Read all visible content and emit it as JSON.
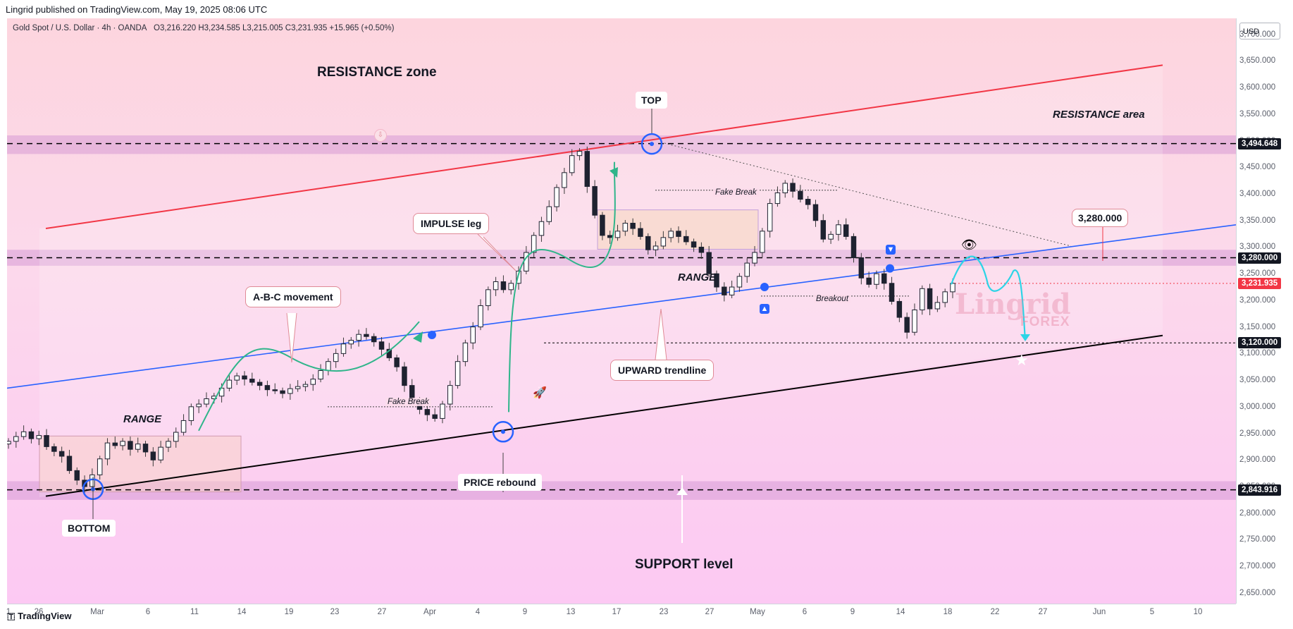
{
  "header": {
    "publisher": "Lingrid published on TradingView.com, May 19, 2025 08:06 UTC",
    "symbol": "Gold Spot / U.S. Dollar · 4h · OANDA",
    "ohlc": "O3,216.220 H3,234.585 L3,215.005 C3,231.935 +15.965 (+0.50%)",
    "currency": "USD",
    "logo": "TradingView"
  },
  "colors": {
    "bull": "#089981",
    "bear": "#f23645",
    "zone": "#d9a0d9",
    "resistance_line": "#f23645",
    "trend_line": "#2962ff",
    "support_line": "#000000",
    "price_tag": "#f23645"
  },
  "annotations": {
    "resistance_zone": "RESISTANCE zone",
    "resistance_area": "RESISTANCE area",
    "top": "TOP",
    "impulse_leg": "IMPULSE leg",
    "abc_movement": "A-B-C movement",
    "range_left": "RANGE",
    "range_mid": "RANGE",
    "fake_break_left": "Fake Break",
    "fake_break_top": "Fake Break",
    "breakout": "Breakout",
    "upward_trendline": "UPWARD trendline",
    "price_rebound": "PRICE rebound",
    "bottom": "BOTTOM",
    "support_level": "SUPPORT level",
    "target": "3,280.000",
    "watermark": "Lingrid",
    "watermark_sub": "FOREX"
  },
  "chart_data": {
    "type": "candlestick",
    "symbol": "XAUUSD",
    "timeframe": "4h",
    "ylim": [
      2630,
      3730
    ],
    "y_ticks": [
      3700,
      3650,
      3600,
      3550,
      3500,
      3450,
      3400,
      3350,
      3300,
      3250,
      3200,
      3150,
      3100,
      3050,
      3000,
      2950,
      2900,
      2850,
      2800,
      2750,
      2700,
      2650
    ],
    "y_tick_labels": [
      "3,700.000",
      "3,650.000",
      "3,600.000",
      "3,550.000",
      "3,500.000",
      "3,450.000",
      "3,400.000",
      "3,350.000",
      "3,300.000",
      "3,250.000",
      "3,200.000",
      "3,150.000",
      "3,100.000",
      "3,050.000",
      "3,000.000",
      "2,950.000",
      "2,900.000",
      "2,850.000",
      "2,800.000",
      "2,750.000",
      "2,700.000",
      "2,650.000"
    ],
    "x_labels": [
      "1",
      "26",
      "Mar",
      "6",
      "11",
      "14",
      "19",
      "23",
      "27",
      "Apr",
      "4",
      "9",
      "13",
      "17",
      "23",
      "27",
      "May",
      "6",
      "9",
      "14",
      "18",
      "22",
      "27",
      "Jun",
      "5",
      "10"
    ],
    "price_levels": [
      {
        "label": "3,494.648",
        "value": 3494.648,
        "color": "#131722"
      },
      {
        "label": "3,280.000",
        "value": 3280.0,
        "color": "#131722"
      },
      {
        "label": "3,231.935",
        "value": 3231.935,
        "color": "#f23645"
      },
      {
        "label": "3,120.000",
        "value": 3120.0,
        "color": "#131722"
      },
      {
        "label": "2,843.916",
        "value": 2843.916,
        "color": "#131722"
      }
    ],
    "zones": [
      {
        "from": 3475,
        "to": 3510
      },
      {
        "from": 3265,
        "to": 3295
      },
      {
        "from": 2825,
        "to": 2860
      }
    ],
    "series": [
      {
        "values": [
          2935,
          2944,
          2953,
          2940,
          2946,
          2925,
          2916,
          2907,
          2880,
          2862,
          2850,
          2872,
          2902,
          2932,
          2927,
          2935,
          2920,
          2930,
          2915,
          2900,
          2924,
          2935,
          2952,
          2974,
          3000,
          3005,
          3015,
          3020,
          3035,
          3050,
          3058,
          3052,
          3046,
          3040,
          3032,
          3030,
          3025,
          3034,
          3038,
          3042,
          3052,
          3068,
          3085,
          3100,
          3118,
          3125,
          3136,
          3132,
          3122,
          3108,
          3092,
          3075,
          3040,
          3012,
          2995,
          2985,
          2978,
          3005,
          3040,
          3085,
          3120,
          3150,
          3190,
          3220,
          3235,
          3220,
          3232,
          3255,
          3290,
          3322,
          3348,
          3376,
          3412,
          3440,
          3472,
          3480,
          3414,
          3360,
          3322,
          3318,
          3330,
          3345,
          3335,
          3320,
          3295,
          3302,
          3318,
          3330,
          3320,
          3310,
          3300,
          3290,
          3250,
          3225,
          3210,
          3225,
          3245,
          3270,
          3290,
          3330,
          3382,
          3402,
          3420,
          3405,
          3390,
          3380,
          3350,
          3315,
          3324,
          3342,
          3320,
          3280,
          3242,
          3230,
          3250,
          3232,
          3198,
          3168,
          3140,
          3182,
          3222,
          3184,
          3196,
          3216,
          3231.935
        ]
      }
    ]
  }
}
